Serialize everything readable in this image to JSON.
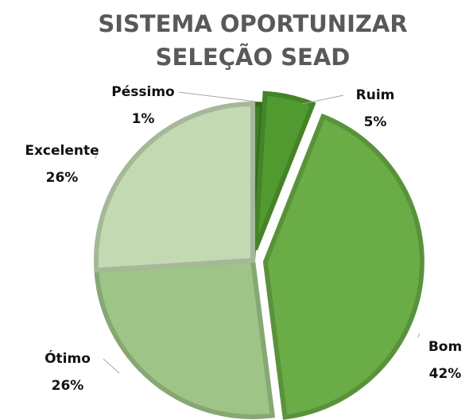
{
  "chart_data": {
    "type": "pie",
    "title": [
      "SISTEMA OPORTUNIZAR",
      "SELEÇÃO SEAD"
    ],
    "categories": [
      "Péssimo",
      "Ruim",
      "Bom",
      "Ótimo",
      "Excelente"
    ],
    "values": [
      1,
      5,
      42,
      26,
      26
    ],
    "value_labels": [
      "1%",
      "5%",
      "42%",
      "26%",
      "26%"
    ],
    "colors": [
      "#3d7f24",
      "#519a2f",
      "#6aac46",
      "#9fc487",
      "#c2d9b2"
    ]
  }
}
